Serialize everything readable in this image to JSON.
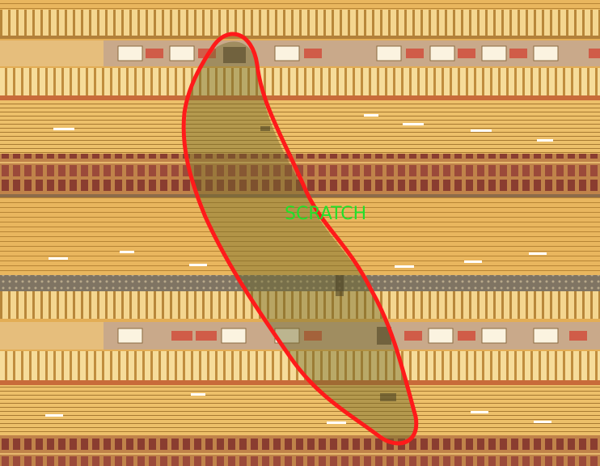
{
  "image": {
    "description_kind": "optical micrograph of semiconductor die with annotated defect"
  },
  "annotation": {
    "label": "SCRATCH",
    "label_color": "#22e02a",
    "outline_color": "#ff1a1a"
  },
  "colors": {
    "metal_gold": "#e8b25a",
    "metal_light": "#f3d184",
    "cell_red": "#9b4a3a",
    "pad_white": "#fbf3e0",
    "scratch_fill": "#a8953f"
  }
}
